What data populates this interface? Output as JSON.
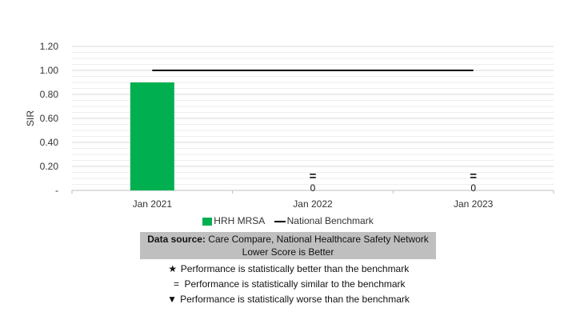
{
  "chart_data": {
    "type": "bar",
    "categories": [
      "Jan 2021",
      "Jan 2022",
      "Jan 2023"
    ],
    "series": [
      {
        "name": "HRH MRSA",
        "type": "bar",
        "color": "#00b050",
        "values": [
          0.9,
          0,
          0
        ]
      },
      {
        "name": "National Benchmark",
        "type": "line",
        "color": "#000000",
        "values": [
          1.0,
          1.0,
          1.0
        ]
      }
    ],
    "ylabel": "SIR",
    "ylim": [
      0,
      1.2
    ],
    "yticks": [
      "-",
      "0.20",
      "0.40",
      "0.60",
      "0.80",
      "1.00",
      "1.20"
    ],
    "grid": true,
    "legend_position": "bottom",
    "annotations": [
      {
        "category": "Jan 2022",
        "symbol": "=",
        "label": "0"
      },
      {
        "category": "Jan 2023",
        "symbol": "=",
        "label": "0"
      }
    ]
  },
  "source": {
    "label": "Data source:",
    "text": "Care Compare, National Healthcare Safety Network",
    "note": "Lower Score is Better"
  },
  "key": [
    {
      "symbol": "★",
      "icon": "star-icon",
      "text": "Performance is statistically better than the benchmark"
    },
    {
      "symbol": "=",
      "icon": "equals-icon",
      "text": "Performance is statistically similar to the benchmark"
    },
    {
      "symbol": "▼",
      "icon": "down-triangle-icon",
      "text": "Performance is statistically worse than the benchmark"
    }
  ]
}
